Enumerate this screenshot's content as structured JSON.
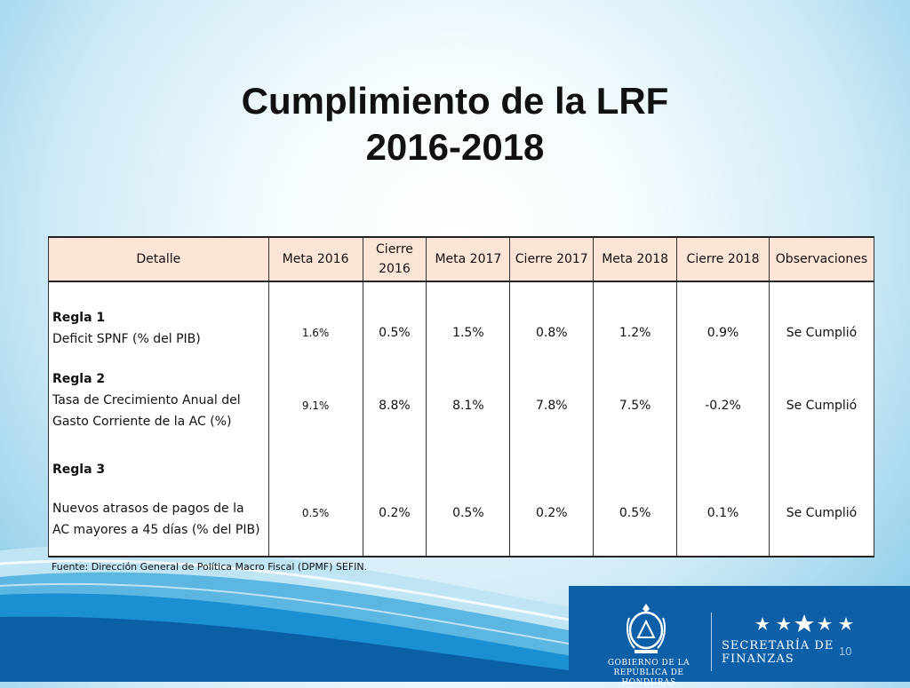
{
  "title": {
    "line1": "Cumplimiento de la LRF",
    "line2": "2016-2018"
  },
  "table": {
    "headers": [
      "Detalle",
      "Meta 2016",
      "Cierre 2016",
      "Meta 2017",
      "Cierre 2017",
      "Meta 2018",
      "Cierre 2018",
      "Observaciones"
    ],
    "rows": [
      {
        "rule": "Regla 1",
        "desc": "Deficit SPNF (% del PIB)",
        "values": [
          "1.6%",
          "0.5%",
          "1.5%",
          "0.8%",
          "1.2%",
          "0.9%",
          "Se Cumplió"
        ]
      },
      {
        "rule": "Regla 2",
        "desc": "Tasa de Crecimiento Anual del Gasto Corriente de la AC (%)",
        "values": [
          "9.1%",
          "8.8%",
          "8.1%",
          "7.8%",
          "7.5%",
          "-0.2%",
          "Se Cumplió"
        ]
      },
      {
        "rule": "Regla 3",
        "desc": "Nuevos atrasos de pagos de la AC mayores a 45 días (% del PIB)",
        "values": [
          "0.5%",
          "0.2%",
          "0.5%",
          "0.2%",
          "0.5%",
          "0.1%",
          "Se Cumplió"
        ]
      }
    ]
  },
  "source": "Fuente: Dirección General de Política Macro Fiscal (DPMF) SEFIN.",
  "footer": {
    "gov_line1": "GOBIERNO DE LA",
    "gov_line2": "REPÚBLICA DE HONDURAS",
    "secretaria": "SECRETARÍA DE FINANZAS",
    "page_number": "10"
  },
  "colors": {
    "header_fill": "#fce4d6",
    "wave_blue": "#1a8fd1",
    "wave_dark": "#0b5fa5"
  }
}
